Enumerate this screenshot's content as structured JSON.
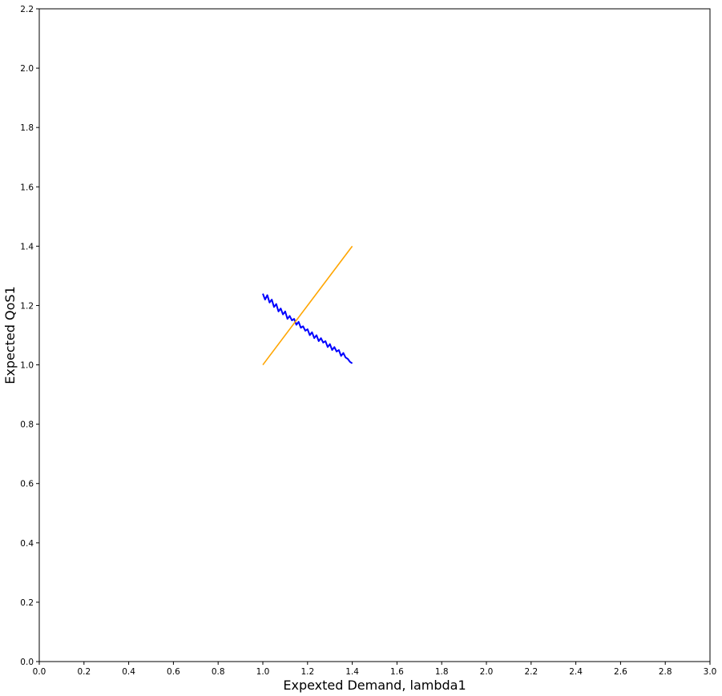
{
  "chart_data": {
    "type": "line",
    "title": "",
    "xlabel": "Expexted Demand, lambda1",
    "ylabel": "Expected QoS1",
    "xlim": [
      0.0,
      3.0
    ],
    "ylim": [
      0.0,
      2.2
    ],
    "grid": false,
    "x_ticks": [
      "0.0",
      "0.2",
      "0.4",
      "0.6",
      "0.8",
      "1.0",
      "1.2",
      "1.4",
      "1.6",
      "1.8",
      "2.0",
      "2.2",
      "2.4",
      "2.6",
      "2.8",
      "3.0"
    ],
    "y_ticks": [
      "0.0",
      "0.2",
      "0.4",
      "0.6",
      "0.8",
      "1.0",
      "1.2",
      "1.4",
      "1.6",
      "1.8",
      "2.0",
      "2.2"
    ],
    "series": [
      {
        "color": "#0000ff",
        "x": [
          1.0,
          1.01,
          1.02,
          1.03,
          1.04,
          1.05,
          1.06,
          1.07,
          1.08,
          1.09,
          1.1,
          1.11,
          1.12,
          1.13,
          1.14,
          1.15,
          1.16,
          1.17,
          1.18,
          1.19,
          1.2,
          1.21,
          1.22,
          1.23,
          1.24,
          1.25,
          1.26,
          1.27,
          1.28,
          1.29,
          1.3,
          1.31,
          1.32,
          1.33,
          1.34,
          1.35,
          1.36,
          1.37,
          1.38,
          1.39,
          1.4
        ],
        "y": [
          1.24,
          1.22,
          1.235,
          1.21,
          1.22,
          1.195,
          1.205,
          1.18,
          1.19,
          1.17,
          1.18,
          1.155,
          1.165,
          1.15,
          1.155,
          1.135,
          1.145,
          1.125,
          1.13,
          1.115,
          1.12,
          1.1,
          1.11,
          1.09,
          1.1,
          1.08,
          1.09,
          1.075,
          1.08,
          1.06,
          1.07,
          1.05,
          1.06,
          1.045,
          1.05,
          1.03,
          1.04,
          1.025,
          1.02,
          1.01,
          1.005
        ]
      },
      {
        "color": "#ffa500",
        "x": [
          1.0,
          1.4
        ],
        "y": [
          1.0,
          1.4
        ]
      }
    ]
  }
}
